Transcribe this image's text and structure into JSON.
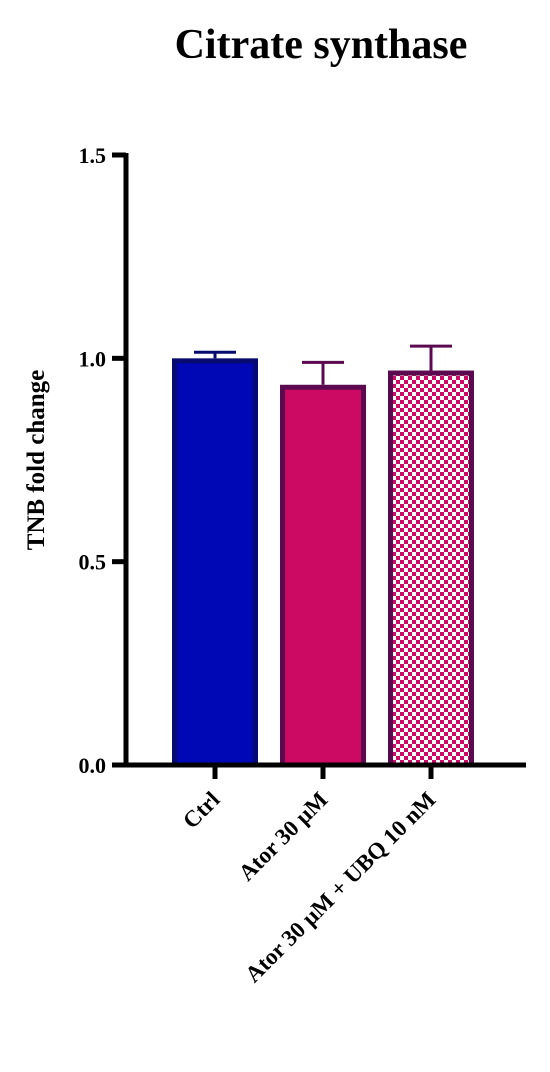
{
  "chart_data": {
    "type": "bar",
    "title": "Citrate synthase",
    "xlabel": "",
    "ylabel": "TNB fold change",
    "ylim": [
      0,
      1.5
    ],
    "yticks": [
      "0.0",
      "0.5",
      "1.0",
      "1.5"
    ],
    "grid": false,
    "categories": [
      "Ctrl",
      "Ator 30 μM",
      "Ator 30 μM + UBQ 10 nM"
    ],
    "values": [
      1.0,
      0.935,
      0.97
    ],
    "errors": [
      0.015,
      0.055,
      0.06
    ],
    "styles": [
      {
        "fill": "#0007b4",
        "stroke": "#070a6e",
        "pattern": "solid"
      },
      {
        "fill": "#cc0a63",
        "stroke": "#5c0a4f",
        "pattern": "solid"
      },
      {
        "fill": "#cc0a63",
        "stroke": "#5c0a4f",
        "pattern": "checker"
      }
    ]
  }
}
